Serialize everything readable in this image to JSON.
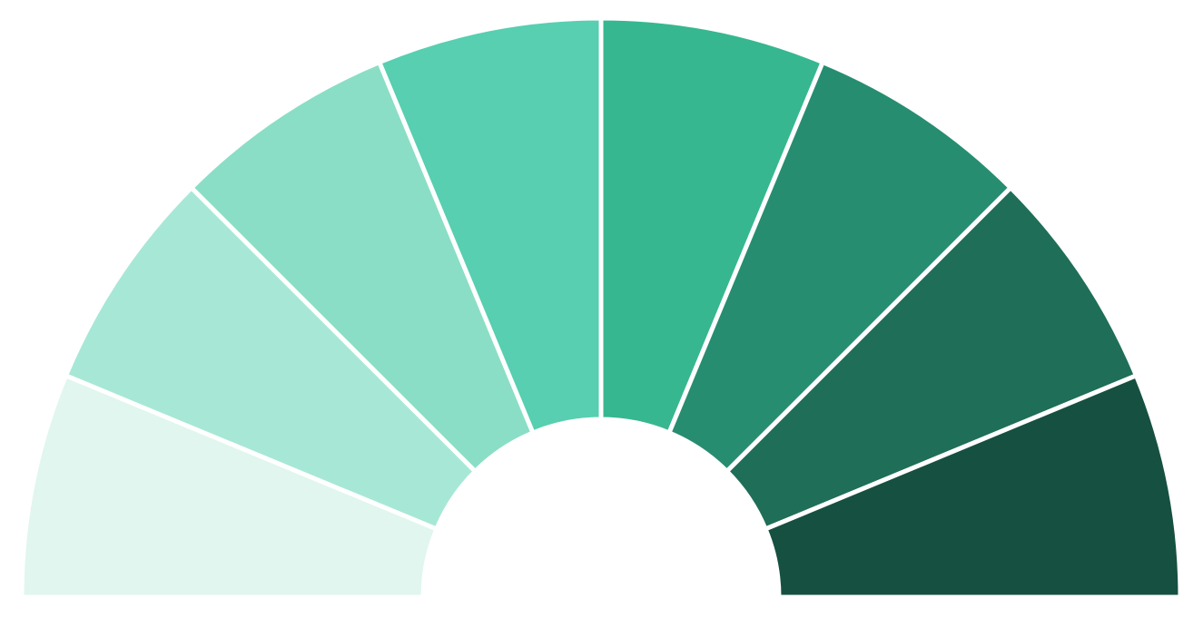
{
  "chart_data": {
    "type": "pie",
    "variant": "half-donut",
    "values": [
      1,
      1,
      1,
      1,
      1,
      1,
      1,
      1
    ],
    "colors": [
      "#e0f6ef",
      "#a7e7d6",
      "#8adec5",
      "#57cfb0",
      "#36b78f",
      "#278d70",
      "#1f6e57",
      "#165040"
    ],
    "separator_color": "#ffffff"
  }
}
